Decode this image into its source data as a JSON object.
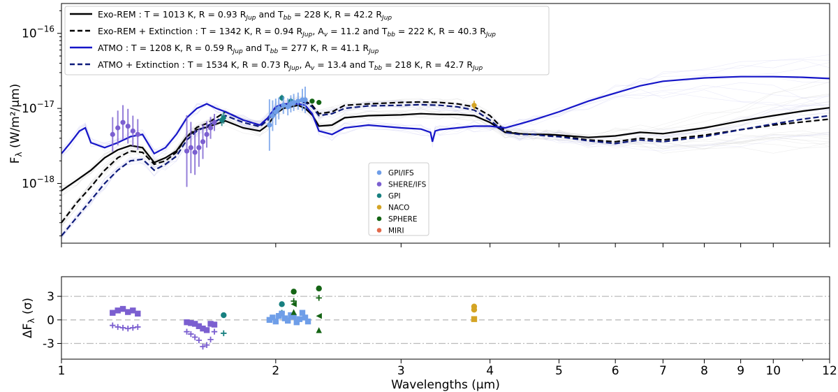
{
  "chart_data": [
    {
      "type": "line",
      "panel": "spectrum",
      "ylabel_main": "F",
      "ylabel_sub": "λ",
      "ylabel_unit": " (W/m²/μm)",
      "xscale": "log",
      "yscale": "log",
      "xlim": [
        1,
        12
      ],
      "ylim": [
        1.6e-19,
        2.5e-16
      ],
      "yticks": [
        {
          "value": 1e-18,
          "base": "10",
          "exp": "−18"
        },
        {
          "value": 1e-17,
          "base": "10",
          "exp": "−17"
        },
        {
          "value": 1e-16,
          "base": "10",
          "exp": "−16"
        }
      ],
      "series": [
        {
          "name": "Exo-REM : T = 1013 K, R = 0.93 RJup and Tbb = 228 K, R = 42.2 RJup",
          "label_parts": [
            "Exo-REM : T = 1013 K, R = 0.93 R",
            "Jup",
            " and T",
            "bb",
            " = 228 K, R = 42.2 R",
            "Jup"
          ],
          "color": "#000000",
          "dash": "solid",
          "x": [
            1.0,
            1.05,
            1.1,
            1.15,
            1.2,
            1.25,
            1.3,
            1.35,
            1.4,
            1.45,
            1.5,
            1.55,
            1.6,
            1.65,
            1.7,
            1.8,
            1.9,
            1.95,
            2.0,
            2.05,
            2.1,
            2.15,
            2.2,
            2.25,
            2.3,
            2.4,
            2.5,
            2.7,
            3.0,
            3.2,
            3.4,
            3.6,
            3.8,
            4.0,
            4.2,
            4.4,
            4.6,
            4.8,
            5.0,
            5.5,
            6.0,
            6.5,
            7.0,
            8.0,
            9.0,
            10.0,
            11.0,
            12.0
          ],
          "y": [
            8e-19,
            1.1e-18,
            1.5e-18,
            2.2e-18,
            2.8e-18,
            3.2e-18,
            3e-18,
            1.9e-18,
            2.2e-18,
            2.7e-18,
            4.2e-18,
            5.2e-18,
            5.6e-18,
            6.2e-18,
            6.8e-18,
            5.5e-18,
            5e-18,
            6e-18,
            8.5e-18,
            1e-17,
            1.05e-17,
            1.1e-17,
            1e-17,
            8.2e-18,
            5.8e-18,
            6e-18,
            7.5e-18,
            8e-18,
            8.2e-18,
            8.5e-18,
            8.3e-18,
            8.3e-18,
            8e-18,
            6.5e-18,
            4.8e-18,
            4.6e-18,
            4.5e-18,
            4.5e-18,
            4.4e-18,
            4.1e-18,
            4.3e-18,
            4.8e-18,
            4.6e-18,
            5.5e-18,
            6.8e-18,
            8e-18,
            9.2e-18,
            1.02e-17
          ]
        },
        {
          "name": "Exo-REM + Extinction : T = 1342 K, R = 0.94 RJup, Av = 11.2 and Tbb = 222 K, R = 40.3 RJup",
          "label_parts": [
            "Exo-REM + Extinction : T = 1342 K, R = 0.94 R",
            "Jup",
            ", A",
            "v",
            " = 11.2 and T",
            "bb",
            " = 222 K, R = 40.3 R",
            "Jup"
          ],
          "color": "#000000",
          "dash": "dashed",
          "x": [
            1.0,
            1.05,
            1.1,
            1.15,
            1.2,
            1.25,
            1.3,
            1.35,
            1.4,
            1.45,
            1.5,
            1.55,
            1.6,
            1.65,
            1.7,
            1.8,
            1.9,
            1.95,
            2.0,
            2.05,
            2.1,
            2.15,
            2.2,
            2.25,
            2.3,
            2.4,
            2.5,
            2.7,
            3.0,
            3.2,
            3.4,
            3.6,
            3.8,
            4.0,
            4.2,
            4.4,
            4.6,
            4.8,
            5.0,
            5.5,
            6.0,
            6.5,
            7.0,
            8.0,
            9.0,
            10.0,
            11.0,
            12.0
          ],
          "y": [
            3e-19,
            5.5e-19,
            9e-19,
            1.5e-18,
            2.2e-18,
            2.7e-18,
            2.6e-18,
            1.8e-18,
            2e-18,
            2.6e-18,
            4.2e-18,
            5.6e-18,
            6.3e-18,
            7.5e-18,
            9e-18,
            7e-18,
            6e-18,
            7.5e-18,
            1e-17,
            1.15e-17,
            1.2e-17,
            1.25e-17,
            1.25e-17,
            1.1e-17,
            8.5e-18,
            9e-18,
            1.1e-17,
            1.15e-17,
            1.2e-17,
            1.22e-17,
            1.2e-17,
            1.15e-17,
            1.05e-17,
            8e-18,
            5e-18,
            4.6e-18,
            4.5e-18,
            4.4e-18,
            4.3e-18,
            3.8e-18,
            3.6e-18,
            4e-18,
            3.8e-18,
            4.4e-18,
            5.2e-18,
            6e-18,
            6.6e-18,
            7.2e-18
          ]
        },
        {
          "name": "ATMO : T = 1208 K, R = 0.59 RJup and Tbb = 277 K, R = 41.1 RJup",
          "label_parts": [
            "ATMO : T = 1208 K, R = 0.59 R",
            "Jup",
            " and T",
            "bb",
            " = 277 K, R = 41.1 R",
            "Jup"
          ],
          "color": "#1515c8",
          "dash": "solid",
          "x": [
            1.0,
            1.03,
            1.06,
            1.08,
            1.1,
            1.15,
            1.2,
            1.25,
            1.3,
            1.35,
            1.4,
            1.45,
            1.5,
            1.55,
            1.6,
            1.65,
            1.7,
            1.8,
            1.9,
            1.95,
            2.0,
            2.05,
            2.1,
            2.15,
            2.2,
            2.25,
            2.3,
            2.4,
            2.5,
            2.7,
            3.0,
            3.2,
            3.3,
            3.32,
            3.35,
            3.4,
            3.6,
            3.8,
            4.0,
            4.2,
            4.4,
            4.6,
            5.0,
            5.5,
            6.0,
            6.5,
            7.0,
            8.0,
            9.0,
            10.0,
            11.0,
            12.0
          ],
          "y": [
            2.5e-18,
            3.5e-18,
            5e-18,
            5.5e-18,
            3.5e-18,
            3e-18,
            3.5e-18,
            4.2e-18,
            4.5e-18,
            2.5e-18,
            3e-18,
            4.5e-18,
            7.5e-18,
            1e-17,
            1.15e-17,
            1e-17,
            9e-18,
            7e-18,
            6e-18,
            7.5e-18,
            1.05e-17,
            1.15e-17,
            1.15e-17,
            1.15e-17,
            1.1e-17,
            8.5e-18,
            5e-18,
            4.5e-18,
            5.5e-18,
            6e-18,
            5.5e-18,
            5.3e-18,
            4.8e-18,
            3.6e-18,
            5e-18,
            5.2e-18,
            5.5e-18,
            5.8e-18,
            5.8e-18,
            5.5e-18,
            6.2e-18,
            7e-18,
            9e-18,
            1.25e-17,
            1.6e-17,
            2e-17,
            2.3e-17,
            2.55e-17,
            2.65e-17,
            2.65e-17,
            2.6e-17,
            2.5e-17
          ]
        },
        {
          "name": "ATMO + Extinction : T = 1534 K, R = 0.73 RJup, Av = 13.4 and Tbb = 218 K, R = 42.7 RJup",
          "label_parts": [
            "ATMO + Extinction : T = 1534 K, R = 0.73 R",
            "Jup",
            ", A",
            "v",
            " = 13.4 and T",
            "bb",
            " = 218 K, R = 42.7 R",
            "Jup"
          ],
          "color": "#0d1a7a",
          "dash": "dashed",
          "x": [
            1.0,
            1.05,
            1.1,
            1.15,
            1.2,
            1.25,
            1.3,
            1.35,
            1.4,
            1.45,
            1.5,
            1.55,
            1.6,
            1.65,
            1.7,
            1.8,
            1.9,
            1.95,
            2.0,
            2.05,
            2.1,
            2.15,
            2.2,
            2.25,
            2.3,
            2.4,
            2.5,
            2.7,
            3.0,
            3.2,
            3.4,
            3.6,
            3.8,
            4.0,
            4.2,
            4.4,
            4.6,
            4.8,
            5.0,
            5.5,
            6.0,
            6.5,
            7.0,
            8.0,
            9.0,
            10.0,
            11.0,
            12.0
          ],
          "y": [
            2e-19,
            3.5e-19,
            6e-19,
            1e-18,
            1.5e-18,
            2e-18,
            2.1e-18,
            1.5e-18,
            1.8e-18,
            2.3e-18,
            3.8e-18,
            5e-18,
            5.8e-18,
            6.8e-18,
            8e-18,
            6.5e-18,
            5.7e-18,
            7e-18,
            9.5e-18,
            1.1e-17,
            1.15e-17,
            1.2e-17,
            1.2e-17,
            1.05e-17,
            8e-18,
            8.5e-18,
            1e-17,
            1.08e-17,
            1.1e-17,
            1.12e-17,
            1.1e-17,
            1.05e-17,
            9.5e-18,
            7e-18,
            4.8e-18,
            4.5e-18,
            4.5e-18,
            4.3e-18,
            4.2e-18,
            3.7e-18,
            3.4e-18,
            3.8e-18,
            3.6e-18,
            4.2e-18,
            5.2e-18,
            6.2e-18,
            7.2e-18,
            8e-18
          ]
        }
      ],
      "data_legend": [
        {
          "label": "GPI/IFS",
          "color": "#6f9ee8"
        },
        {
          "label": "SHERE/IFS",
          "color": "#7b5fd0"
        },
        {
          "label": "GPI",
          "color": "#188080"
        },
        {
          "label": "NACO",
          "color": "#d4a424"
        },
        {
          "label": "SPHERE",
          "color": "#146414"
        },
        {
          "label": "MIRI",
          "color": "#e2694a"
        }
      ],
      "observations": [
        {
          "instrument": "SHERE/IFS",
          "color": "#7b5fd0",
          "x": [
            1.18,
            1.2,
            1.22,
            1.24,
            1.26,
            1.28
          ],
          "y": [
            4.5e-18,
            5.5e-18,
            6.5e-18,
            5.8e-18,
            5e-18,
            4.5e-18
          ],
          "yerr_factor": [
            1.7,
            1.7,
            1.7,
            1.7,
            1.6,
            1.6
          ]
        },
        {
          "instrument": "SHERE/IFS",
          "color": "#7b5fd0",
          "x": [
            1.5,
            1.52,
            1.54,
            1.56,
            1.58,
            1.6,
            1.62,
            1.64
          ],
          "y": [
            2.7e-18,
            3e-18,
            2.6e-18,
            3e-18,
            3.6e-18,
            4.5e-18,
            5.5e-18,
            6.5e-18
          ],
          "yerr_factor": [
            3.0,
            2.2,
            2.0,
            1.8,
            1.7,
            1.5,
            1.4,
            1.3
          ]
        },
        {
          "instrument": "GPI",
          "color": "#188080",
          "x": [
            1.68,
            1.69,
            2.04,
            2.1
          ],
          "y": [
            7e-18,
            7.5e-18,
            1.38e-17,
            1.25e-17
          ],
          "yerr_factor": [
            1.2,
            1.2,
            1.1,
            1.1
          ]
        },
        {
          "instrument": "GPI/IFS",
          "color": "#6f9ee8",
          "x": [
            1.96,
            1.98,
            2.0,
            2.02,
            2.05,
            2.08,
            2.1,
            2.12,
            2.15,
            2.18,
            2.2
          ],
          "y": [
            6e-18,
            8e-18,
            9e-18,
            1e-17,
            1.1e-17,
            1.05e-17,
            1.15e-17,
            1.2e-17,
            1.25e-17,
            1.3e-17,
            1.3e-17
          ],
          "yerr_factor": [
            2.2,
            1.6,
            1.5,
            1.4,
            1.3,
            1.3,
            1.3,
            1.3,
            1.3,
            1.4,
            1.5
          ]
        },
        {
          "instrument": "SPHERE",
          "color": "#146414",
          "x": [
            2.25,
            2.3
          ],
          "y": [
            1.25e-17,
            1.2e-17
          ],
          "yerr_factor": [
            1.05,
            1.05
          ]
        },
        {
          "instrument": "NACO",
          "color": "#d4a424",
          "x": [
            3.8
          ],
          "y": [
            1.1e-17
          ],
          "yerr_factor": [
            1.15
          ]
        }
      ]
    },
    {
      "type": "scatter",
      "panel": "residuals",
      "ylabel_main": "ΔF",
      "ylabel_sub": "λ",
      "ylabel_unit": " (σ)",
      "xscale": "log",
      "xlim": [
        1,
        12
      ],
      "ylim": [
        -5.0,
        5.5
      ],
      "yticks": [
        -3,
        0,
        3
      ],
      "ytick_labels": [
        "-3",
        "0",
        "3"
      ],
      "reference_lines": [
        -3,
        0,
        3
      ],
      "xlabel": "Wavelengths (μm)",
      "xticks": [
        1,
        2,
        3,
        4,
        5,
        6,
        7,
        8,
        9,
        10,
        12
      ],
      "xtick_labels": [
        "1",
        "2",
        "3",
        "4",
        "5",
        "6",
        "7",
        "8",
        "9",
        "10",
        "12"
      ],
      "series": [
        {
          "instrument": "SHERE/IFS",
          "marker": "square",
          "color": "#7b5fd0",
          "x": [
            1.18,
            1.2,
            1.22,
            1.24,
            1.26,
            1.28
          ],
          "y": [
            0.9,
            1.2,
            1.4,
            1.0,
            1.2,
            0.8
          ]
        },
        {
          "instrument": "SHERE/IFS",
          "marker": "plus",
          "color": "#7b5fd0",
          "x": [
            1.18,
            1.2,
            1.22,
            1.24,
            1.26,
            1.28
          ],
          "y": [
            -0.7,
            -0.9,
            -1.0,
            -1.1,
            -1.0,
            -0.9
          ]
        },
        {
          "instrument": "SHERE/IFS",
          "marker": "square",
          "color": "#7b5fd0",
          "x": [
            1.5,
            1.52,
            1.54,
            1.56,
            1.58,
            1.6,
            1.62,
            1.64
          ],
          "y": [
            -0.3,
            -0.4,
            -0.5,
            -0.8,
            -1.1,
            -1.3,
            -0.5,
            -0.6
          ]
        },
        {
          "instrument": "SHERE/IFS",
          "marker": "plus",
          "color": "#7b5fd0",
          "x": [
            1.5,
            1.52,
            1.54,
            1.56,
            1.58,
            1.6,
            1.62,
            1.64
          ],
          "y": [
            -1.5,
            -1.8,
            -2.2,
            -2.6,
            -3.4,
            -3.2,
            -2.5,
            -1.5
          ]
        },
        {
          "instrument": "GPI",
          "marker": "circle",
          "color": "#188080",
          "x": [
            1.69,
            2.04
          ],
          "y": [
            0.6,
            2.0
          ]
        },
        {
          "instrument": "GPI",
          "marker": "plus",
          "color": "#188080",
          "x": [
            1.69,
            2.04
          ],
          "y": [
            -1.7,
            0.9
          ]
        },
        {
          "instrument": "GPI/IFS",
          "marker": "square",
          "color": "#6f9ee8",
          "x": [
            1.96,
            1.98,
            2.0,
            2.02,
            2.04,
            2.06,
            2.08,
            2.1,
            2.12,
            2.14,
            2.16,
            2.18,
            2.2,
            2.22
          ],
          "y": [
            0.0,
            0.3,
            -0.2,
            0.5,
            0.8,
            0.2,
            -0.1,
            0.6,
            0.4,
            -0.3,
            0.1,
            0.9,
            0.3,
            -0.2
          ]
        },
        {
          "instrument": "SPHERE",
          "marker": "circle",
          "color": "#146414",
          "x": [
            2.12,
            2.3
          ],
          "y": [
            3.6,
            4.0
          ]
        },
        {
          "instrument": "SPHERE",
          "marker": "plus",
          "color": "#146414",
          "x": [
            2.12,
            2.3
          ],
          "y": [
            2.4,
            2.8
          ]
        },
        {
          "instrument": "SPHERE",
          "marker": "triangle-left",
          "color": "#146414",
          "x": [
            2.12,
            2.3
          ],
          "y": [
            2.0,
            0.5
          ]
        },
        {
          "instrument": "SPHERE",
          "marker": "triangle-up",
          "color": "#146414",
          "x": [
            2.12,
            2.3
          ],
          "y": [
            1.0,
            -1.3
          ]
        },
        {
          "instrument": "NACO",
          "marker": "circle",
          "color": "#d4a424",
          "x": [
            3.8,
            3.8
          ],
          "y": [
            1.7,
            1.3
          ]
        },
        {
          "instrument": "NACO",
          "marker": "square",
          "color": "#d4a424",
          "x": [
            3.8
          ],
          "y": [
            0.1
          ]
        }
      ]
    }
  ]
}
